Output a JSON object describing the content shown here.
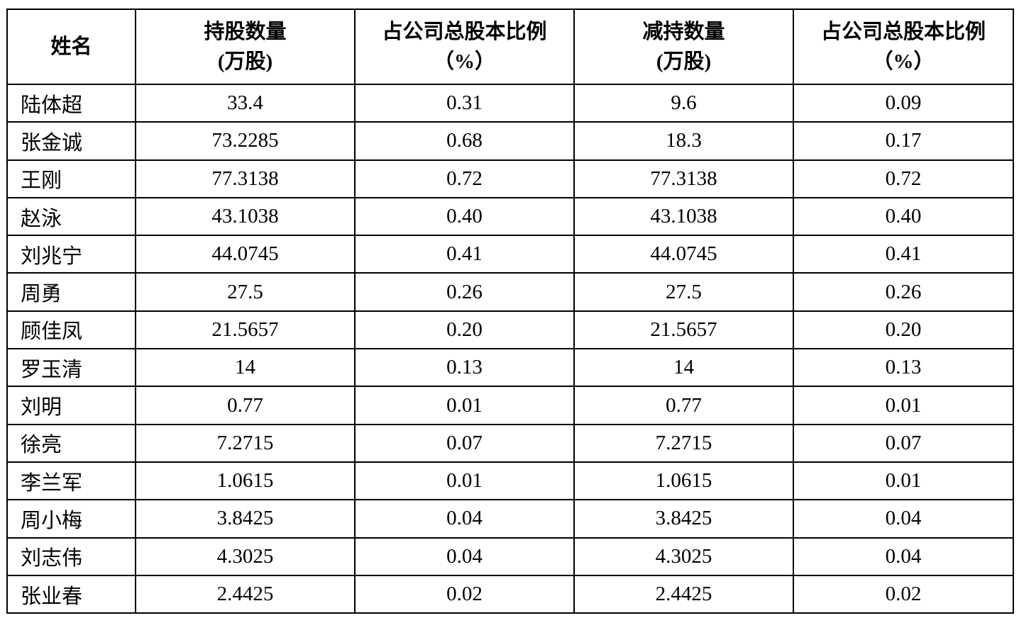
{
  "table": {
    "header": [
      [
        "姓名"
      ],
      [
        "持股数量",
        "(万股)"
      ],
      [
        "占公司总股本比例",
        "（%）"
      ],
      [
        "减持数量",
        "(万股)"
      ],
      [
        "占公司总股本比例",
        "（%）"
      ]
    ],
    "rows": [
      [
        "陆体超",
        "33.4",
        "0.31",
        "9.6",
        "0.09"
      ],
      [
        "张金诚",
        "73.2285",
        "0.68",
        "18.3",
        "0.17"
      ],
      [
        "王刚",
        "77.3138",
        "0.72",
        "77.3138",
        "0.72"
      ],
      [
        "赵泳",
        "43.1038",
        "0.40",
        "43.1038",
        "0.40"
      ],
      [
        "刘兆宁",
        "44.0745",
        "0.41",
        "44.0745",
        "0.41"
      ],
      [
        "周勇",
        "27.5",
        "0.26",
        "27.5",
        "0.26"
      ],
      [
        "顾佳凤",
        "21.5657",
        "0.20",
        "21.5657",
        "0.20"
      ],
      [
        "罗玉清",
        "14",
        "0.13",
        "14",
        "0.13"
      ],
      [
        "刘明",
        "0.77",
        "0.01",
        "0.77",
        "0.01"
      ],
      [
        "徐亮",
        "7.2715",
        "0.07",
        "7.2715",
        "0.07"
      ],
      [
        "李兰军",
        "1.0615",
        "0.01",
        "1.0615",
        "0.01"
      ],
      [
        "周小梅",
        "3.8425",
        "0.04",
        "3.8425",
        "0.04"
      ],
      [
        "刘志伟",
        "4.3025",
        "0.04",
        "4.3025",
        "0.04"
      ],
      [
        "张业春",
        "2.4425",
        "0.02",
        "2.4425",
        "0.02"
      ]
    ]
  }
}
